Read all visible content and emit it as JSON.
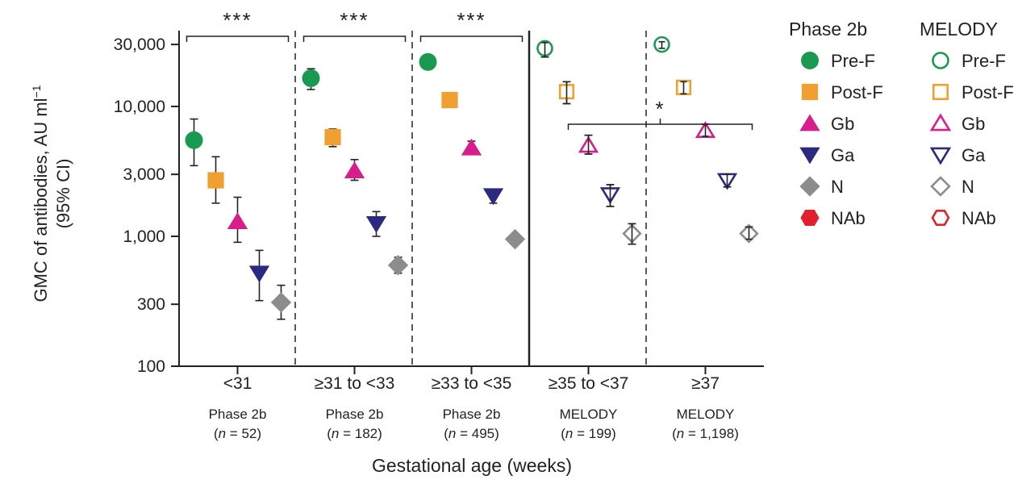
{
  "chart_data": {
    "type": "scatter",
    "y_scale": "log",
    "ylabel_line1": "GMC of antibodies, AU ml",
    "ylabel_sup": "−1",
    "ylabel_line2": "(95% CI)",
    "xlabel": "Gestational age (weeks)",
    "ylim": [
      100,
      40000
    ],
    "yticks": [
      {
        "value": 100,
        "label": "100"
      },
      {
        "value": 300,
        "label": "300"
      },
      {
        "value": 1000,
        "label": "1,000"
      },
      {
        "value": 3000,
        "label": "3,000"
      },
      {
        "value": 10000,
        "label": "10,000"
      },
      {
        "value": 30000,
        "label": "30,000"
      }
    ],
    "groups": [
      {
        "label": "<31",
        "study": "Phase 2b",
        "n_prefix": "n",
        "n_value": " = 52"
      },
      {
        "label": "≥31 to <33",
        "study": "Phase 2b",
        "n_prefix": "n",
        "n_value": " = 182"
      },
      {
        "label": "≥33 to <35",
        "study": "Phase 2b",
        "n_prefix": "n",
        "n_value": " = 495"
      },
      {
        "label": "≥35 to <37",
        "study": "MELODY",
        "n_prefix": "n",
        "n_value": " = 199"
      },
      {
        "label": "≥37",
        "study": "MELODY",
        "n_prefix": "n",
        "n_value": " = 1,198"
      }
    ],
    "series": [
      {
        "name": "Pre-F",
        "marker": "circle",
        "color": "#1a9a50",
        "values": [
          5500,
          16500,
          22000,
          28000,
          30000
        ],
        "ci_low": [
          3500,
          13500,
          20000,
          24000,
          28000
        ],
        "ci_high": [
          8000,
          19500,
          25000,
          31000,
          31500
        ]
      },
      {
        "name": "Post-F",
        "marker": "square",
        "color": "#f0a030",
        "values": [
          2700,
          5800,
          11200,
          13000,
          14000
        ],
        "ci_low": [
          1800,
          4900,
          10000,
          10500,
          12500
        ],
        "ci_high": [
          4100,
          6700,
          12500,
          15500,
          15500
        ]
      },
      {
        "name": "Gb",
        "marker": "triangle-up",
        "color": "#d81e8a",
        "values": [
          1300,
          3200,
          4800,
          5000,
          6500
        ],
        "ci_low": [
          900,
          2700,
          4300,
          4300,
          5900
        ],
        "ci_high": [
          2000,
          3900,
          5400,
          6000,
          7300
        ]
      },
      {
        "name": "Ga",
        "marker": "triangle-down",
        "color": "#2b2a80",
        "values": [
          520,
          1250,
          2050,
          2100,
          2700
        ],
        "ci_low": [
          320,
          1000,
          1800,
          1700,
          2400
        ],
        "ci_high": [
          780,
          1550,
          2300,
          2500,
          3000
        ]
      },
      {
        "name": "N",
        "marker": "diamond",
        "color": "#8c8c8c",
        "values": [
          310,
          600,
          950,
          1050,
          1050
        ],
        "ci_low": [
          230,
          520,
          870,
          870,
          950
        ],
        "ci_high": [
          420,
          690,
          1050,
          1250,
          1180
        ]
      },
      {
        "name": "NAb",
        "marker": "hexagon",
        "color": "#e0202c",
        "values": []
      }
    ],
    "separators": [
      {
        "after_group": 1,
        "style": "dashed"
      },
      {
        "after_group": 2,
        "style": "dashed"
      },
      {
        "after_group": 3,
        "style": "solid"
      },
      {
        "after_group": 4,
        "style": "dashed"
      }
    ],
    "significance": [
      {
        "group": 1,
        "label": "***"
      },
      {
        "group": 2,
        "label": "***"
      },
      {
        "group": 3,
        "label": "***"
      },
      {
        "from_group": 4,
        "to_group": 5,
        "label": "*"
      }
    ],
    "legend": {
      "placement": "right",
      "columns": [
        {
          "title": "Phase 2b",
          "filled": true
        },
        {
          "title": "MELODY",
          "filled": false
        }
      ]
    }
  }
}
